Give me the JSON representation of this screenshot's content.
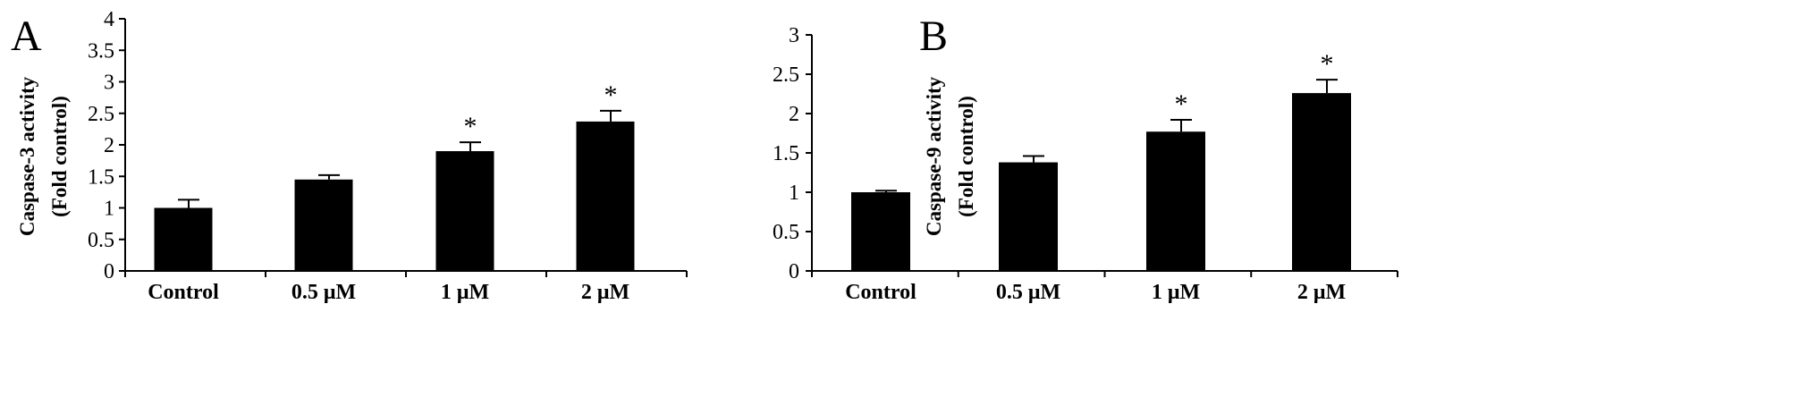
{
  "chart_data": [
    {
      "panel": "A",
      "type": "bar",
      "categories": [
        "Control",
        "0.5 μM",
        "1 μM",
        "2 μM"
      ],
      "values": [
        1.0,
        1.45,
        1.9,
        2.37
      ],
      "errors": [
        0.13,
        0.07,
        0.14,
        0.17
      ],
      "significance": [
        "",
        "",
        "*",
        "*"
      ],
      "ylabel_lines": [
        "Caspase-3 activity",
        "(Fold control)"
      ],
      "xlabel": "",
      "ylim": [
        0,
        4
      ],
      "yticks": [
        "0",
        "0.5",
        "1",
        "1.5",
        "2",
        "2.5",
        "3",
        "3.5",
        "4"
      ],
      "grid": false,
      "bar_color": "#000000"
    },
    {
      "panel": "B",
      "type": "bar",
      "categories": [
        "Control",
        "0.5 μM",
        "1 μM",
        "2 μM"
      ],
      "values": [
        1.0,
        1.38,
        1.77,
        2.26
      ],
      "errors": [
        0.02,
        0.08,
        0.15,
        0.17
      ],
      "significance": [
        "",
        "",
        "*",
        "*"
      ],
      "ylabel_lines": [
        "Caspase-9 activity",
        "(Fold control)"
      ],
      "xlabel": "",
      "ylim": [
        0,
        3
      ],
      "yticks": [
        "0",
        "0.5",
        "1",
        "1.5",
        "2",
        "2.5",
        "3"
      ],
      "grid": false,
      "bar_color": "#000000"
    }
  ]
}
